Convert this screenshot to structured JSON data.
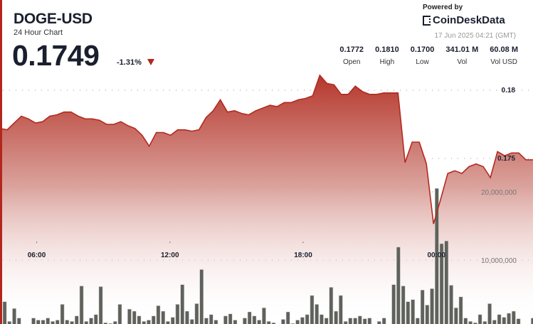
{
  "header": {
    "symbol": "DOGE-USD",
    "subtitle": "24 Hour Chart",
    "price": "0.1749",
    "change": "-1.31%",
    "change_direction": "down",
    "powered_by": "Powered by",
    "brand": "CoinDeskData",
    "timestamp": "17 Jun 2025 04:21 (GMT)"
  },
  "stats": [
    {
      "value": "0.1772",
      "label": "Open"
    },
    {
      "value": "0.1810",
      "label": "High"
    },
    {
      "value": "0.1700",
      "label": "Low"
    },
    {
      "value": "341.01 M",
      "label": "Vol"
    },
    {
      "value": "60.08 M",
      "label": "Vol USD"
    }
  ],
  "colors": {
    "accent": "#b3261e",
    "line": "#b22a20",
    "volume_bar": "#5f625c"
  },
  "chart_data": {
    "type": "area",
    "time_range": [
      "04:21",
      "04:21"
    ],
    "x_ticks": [
      "06:00",
      "12:00",
      "18:00",
      "00:00"
    ],
    "price_ticks": [
      "0.18",
      "0.175"
    ],
    "price_tick_values": [
      0.18,
      0.175
    ],
    "volume_ticks": [
      "20,000,000",
      "10,000,000"
    ],
    "volume_tick_values": [
      20000000,
      10000000
    ],
    "grid": "dotted",
    "price": [
      0.1772,
      0.1771,
      0.1776,
      0.1781,
      0.1779,
      0.1776,
      0.1777,
      0.1781,
      0.1782,
      0.1784,
      0.1784,
      0.1781,
      0.1779,
      0.1779,
      0.1778,
      0.1775,
      0.1775,
      0.1777,
      0.1774,
      0.1772,
      0.1767,
      0.1759,
      0.1769,
      0.1769,
      0.1767,
      0.1771,
      0.1771,
      0.177,
      0.1771,
      0.178,
      0.1785,
      0.1793,
      0.1784,
      0.1785,
      0.1783,
      0.1782,
      0.1785,
      0.1787,
      0.1789,
      0.1788,
      0.1791,
      0.1791,
      0.1793,
      0.1794,
      0.1796,
      0.1811,
      0.1805,
      0.1804,
      0.1797,
      0.1797,
      0.1803,
      0.1799,
      0.1797,
      0.1797,
      0.1798,
      0.1798,
      0.1798,
      0.1747,
      0.1762,
      0.1762,
      0.1746,
      0.1702,
      0.172,
      0.1739,
      0.1741,
      0.1739,
      0.1744,
      0.1746,
      0.1744,
      0.1736,
      0.1755,
      0.1752,
      0.1754,
      0.1754,
      0.1749,
      0.1749
    ],
    "volume_millions": [
      3.9,
      1.0,
      2.9,
      1.5,
      0.6,
      0.5,
      1.5,
      1.2,
      1.2,
      1.5,
      1.0,
      1.2,
      3.5,
      1.2,
      1.0,
      1.8,
      6.2,
      1.0,
      1.5,
      2.0,
      6.1,
      0.8,
      0.7,
      1.0,
      3.5,
      0.5,
      2.8,
      2.5,
      1.8,
      1.0,
      1.2,
      1.8,
      3.3,
      2.5,
      1.0,
      1.6,
      3.5,
      6.4,
      2.5,
      1.3,
      3.6,
      8.6,
      1.5,
      2.0,
      1.2,
      0.6,
      1.8,
      2.1,
      1.2,
      0.5,
      1.5,
      2.4,
      1.8,
      1.2,
      3.0,
      1.0,
      0.8,
      0.5,
      1.3,
      2.4,
      0.7,
      1.2,
      1.6,
      2.0,
      4.8,
      3.5,
      2.0,
      1.5,
      6.0,
      2.5,
      4.8,
      1.0,
      1.5,
      1.5,
      1.8,
      1.4,
      1.5,
      0.6,
      1.0,
      1.5,
      0.6,
      6.4,
      11.9,
      6.2,
      3.9,
      4.2,
      1.5,
      5.6,
      3.4,
      5.8,
      20.5,
      12.4,
      12.8,
      6.3,
      3.0,
      4.6,
      1.5,
      1.0,
      0.8,
      2.0,
      1.0,
      3.6,
      1.2,
      2.0,
      1.6,
      2.2,
      2.5,
      1.4,
      0.5,
      0.6,
      1.5
    ]
  }
}
